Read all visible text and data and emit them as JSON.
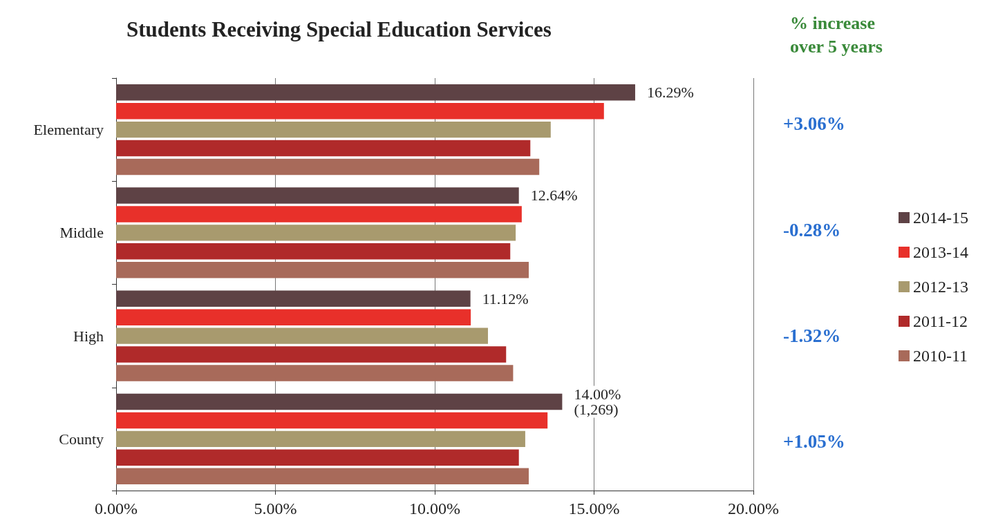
{
  "chart_data": {
    "type": "bar",
    "orientation": "horizontal",
    "title": "Students Receiving Special Education Services",
    "categories": [
      "Elementary",
      "Middle",
      "High",
      "County"
    ],
    "series": [
      {
        "name": "2014-15",
        "color": "#5e4245",
        "values": [
          16.29,
          12.64,
          11.12,
          14.0
        ],
        "value_labels": [
          "16.29%",
          "12.64%",
          "11.12%",
          "14.00%\n(1,269)"
        ]
      },
      {
        "name": "2013-14",
        "color": "#e8302a",
        "values": [
          15.31,
          12.73,
          11.13,
          13.54
        ]
      },
      {
        "name": "2012-13",
        "color": "#a89a6e",
        "values": [
          13.64,
          12.54,
          11.67,
          12.84
        ]
      },
      {
        "name": "2011-12",
        "color": "#b02a2a",
        "values": [
          13.0,
          12.37,
          12.24,
          12.64
        ]
      },
      {
        "name": "2010-11",
        "color": "#a86a5a",
        "values": [
          13.28,
          12.95,
          12.46,
          12.95
        ]
      }
    ],
    "xlim": [
      0,
      20
    ],
    "xticks": [
      {
        "value": 0,
        "label": "0.00%"
      },
      {
        "value": 5,
        "label": "5.00%"
      },
      {
        "value": 10,
        "label": "10.00%"
      },
      {
        "value": 15,
        "label": "15.00%"
      },
      {
        "value": 20,
        "label": "20.00%"
      }
    ],
    "grid": "x",
    "legend": "right",
    "annotations": [
      "% increase\nover 5 years",
      "+3.06%",
      "-0.28%",
      "-1.32%",
      "+1.05%"
    ]
  }
}
